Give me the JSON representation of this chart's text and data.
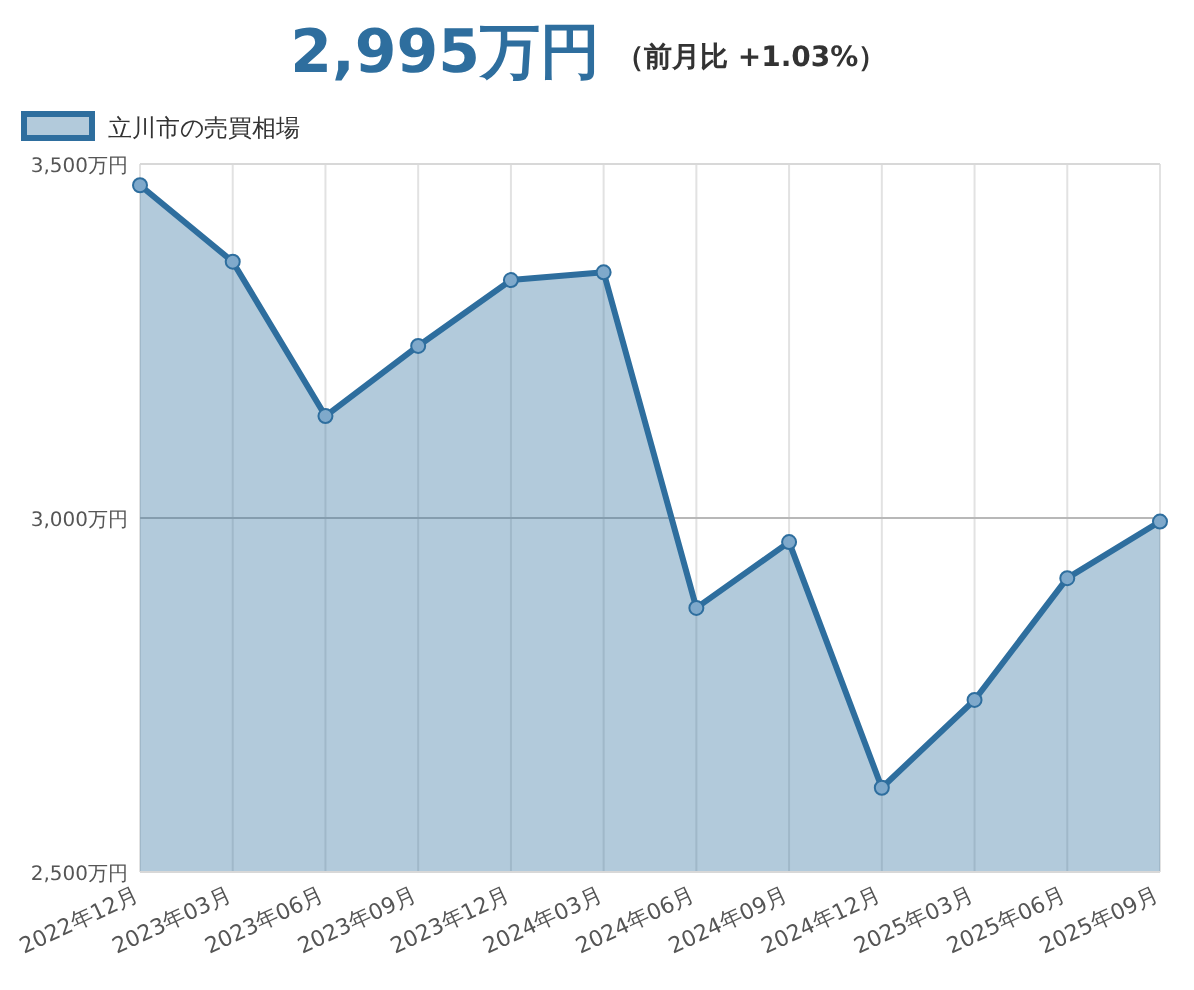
{
  "chart_data": {
    "type": "area",
    "title": "2,995万円",
    "subtitle": "（前月比 +1.03%）",
    "categories": [
      "2022年12月",
      "2023年03月",
      "2023年06月",
      "2023年09月",
      "2023年12月",
      "2024年03月",
      "2024年06月",
      "2024年09月",
      "2024年12月",
      "2025年03月",
      "2025年06月",
      "2025年09月"
    ],
    "series": [
      {
        "name": "立川市の売買相場",
        "color": "#2e6e9e",
        "values": [
          3470,
          3362,
          3144,
          3243,
          3336,
          3347,
          2873,
          2966,
          2619,
          2743,
          2915,
          2995
        ]
      }
    ],
    "ylim": [
      2500,
      3500
    ],
    "yticks": [
      {
        "value": 2500,
        "label": "2,500万円"
      },
      {
        "value": 3000,
        "label": "3,000万円"
      },
      {
        "value": 3500,
        "label": "3,500万円"
      }
    ],
    "ref_lines": [
      {
        "axis": "y",
        "value": 3000,
        "color": "#b8b8b8"
      }
    ],
    "grid": "x",
    "legend": "top left",
    "marker": "circle"
  }
}
